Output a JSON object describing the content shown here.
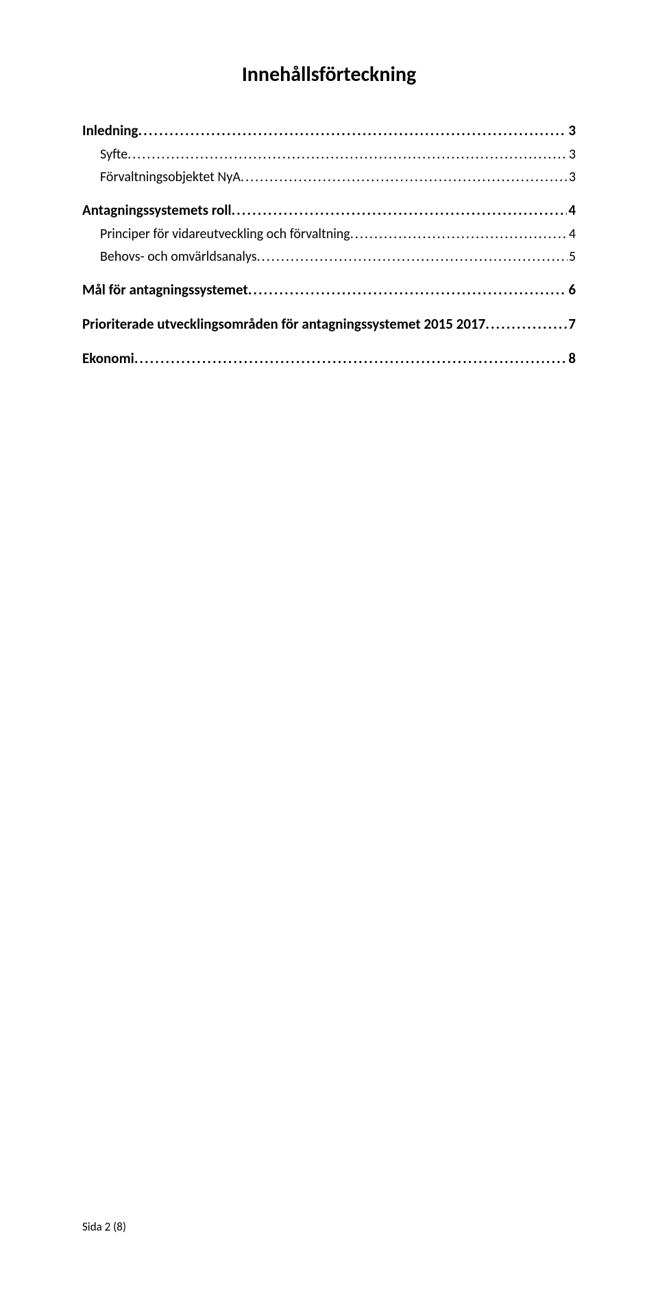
{
  "title": {
    "text": "Innehållsförteckning",
    "fontsize": 30
  },
  "toc": {
    "fontsize_bold": 21,
    "fontsize_normal": 20,
    "line_height_bold": 38,
    "line_height_normal": 33,
    "group_gap": 12,
    "entries": [
      {
        "label": "Inledning",
        "page": "3",
        "bold": true,
        "indent": false,
        "gap_before": 0
      },
      {
        "label": "Syfte",
        "page": "3",
        "bold": false,
        "indent": true,
        "gap_before": 0
      },
      {
        "label": "Förvaltningsobjektet NyA",
        "page": "3",
        "bold": false,
        "indent": true,
        "gap_before": 0
      },
      {
        "label": "Antagningssystemets roll",
        "page": "4",
        "bold": true,
        "indent": false,
        "gap_before": 12
      },
      {
        "label": "Principer för vidareutveckling och förvaltning",
        "page": "4",
        "bold": false,
        "indent": true,
        "gap_before": 0
      },
      {
        "label": "Behovs- och omvärldsanalys",
        "page": "5",
        "bold": false,
        "indent": true,
        "gap_before": 0
      },
      {
        "label": "Mål för antagningssystemet",
        "page": "6",
        "bold": true,
        "indent": false,
        "gap_before": 12
      },
      {
        "label": "Prioriterade utvecklingsområden för antagningssystemet 2015 2017",
        "page": "7",
        "bold": true,
        "indent": false,
        "gap_before": 12
      },
      {
        "label": "Ekonomi",
        "page": "8",
        "bold": true,
        "indent": false,
        "gap_before": 12
      }
    ]
  },
  "footer": {
    "text": "Sida 2 (8)",
    "fontsize": 17
  },
  "colors": {
    "text": "#000000",
    "background": "#ffffff"
  }
}
